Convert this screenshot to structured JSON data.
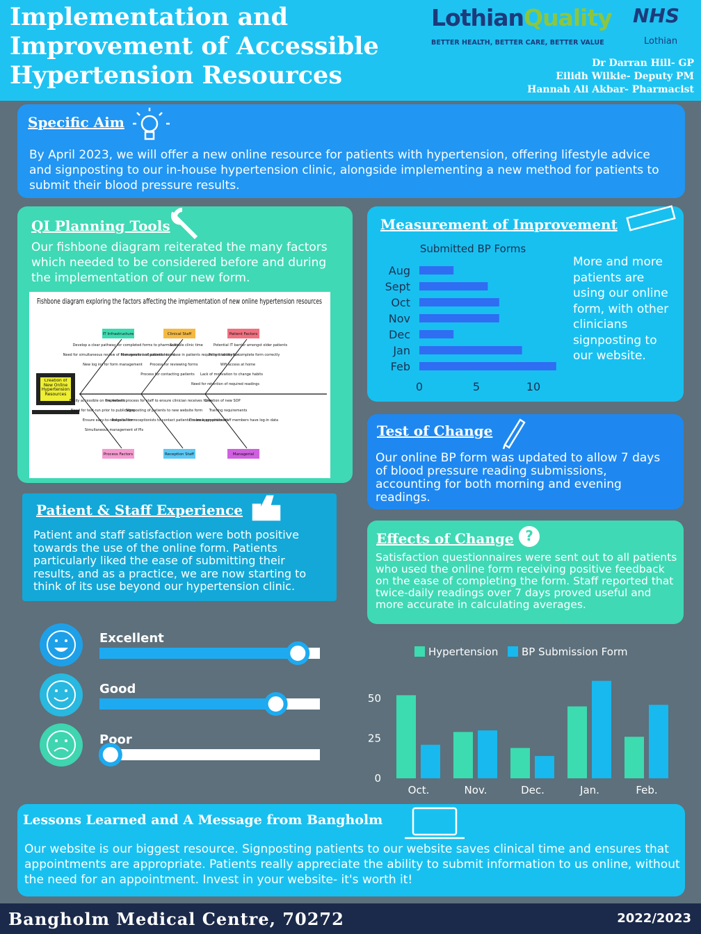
{
  "header": {
    "title_lines": [
      "Implementation and",
      "Improvement of Accessible",
      "Hypertension Resources"
    ],
    "logo_main": "Lothian",
    "logo_accent": "Quality",
    "tagline": "BETTER HEALTH, BETTER CARE, BETTER VALUE",
    "nhs": "NHS",
    "nhs_sub": "Lothian",
    "authors": [
      "Dr Darran Hill- GP",
      "Eilidh Wilkie- Deputy PM",
      "Hannah Ali Akbar- Pharmacist"
    ]
  },
  "aim": {
    "heading": "Specific Aim",
    "text": "By April 2023, we will offer a new online resource for patients with hypertension, offering lifestyle advice and signposting to our in-house hypertension clinic, alongside implementing a new method for patients to submit their blood pressure results."
  },
  "planning": {
    "heading": "QI Planning Tools",
    "text": "Our fishbone diagram reiterated the many factors which needed to be considered before and during the implementation of our new form.",
    "fishbone": {
      "title": "Fishbone diagram exploring the factors affecting the implementation of new online hypertension resources",
      "head": "Creation of New Online Hypertension Resources",
      "causes": [
        {
          "label": "IT Infrastructure",
          "items": [
            "Develop a clear pathway for completed forms to pharmacist",
            "Need for simultaneous review of form results and patient record",
            "New log ins for form management"
          ]
        },
        {
          "label": "Clinical Staff",
          "items": [
            "Suitable clinic time",
            "Management of potential increase in patients requiring intervention",
            "Process for reviewing forms",
            "Process for contacting patients"
          ]
        },
        {
          "label": "Patient Factors",
          "items": [
            "Potential IT barrier amongst older patients",
            "Patient ability to complete form correctly",
            "Wifi access at home",
            "Lack of motivation to change habits",
            "Need for retention of required readings"
          ]
        },
        {
          "label": "Process Factors",
          "items": [
            "Easily accessible on the website",
            "Need for test-run prior to publication",
            "Ensure easy-to-navigate form",
            "Simultaneous management of PIs"
          ]
        },
        {
          "label": "Reception Staff",
          "items": [
            "Implement process for staff to ensure clinician receives form",
            "Signposting of patients to new website form",
            "Potential for receptionists to contact patients to book appointment"
          ]
        },
        {
          "label": "Managerial",
          "items": [
            "Creation of new SOP",
            "Training requirements",
            "Ensure appropriate staff members have log-in data"
          ]
        }
      ]
    }
  },
  "measurement": {
    "heading": "Measurement of Improvement",
    "text": "More and more patients are using our online form, with other clinicians signposting to our website."
  },
  "test": {
    "heading": "Test of Change",
    "text": "Our online BP form was updated to allow 7 days of blood pressure reading submissions, accounting for both morning and evening readings."
  },
  "effects": {
    "heading": "Effects of Change",
    "text": "Satisfaction questionnaires were sent out to all patients who used the online form receiving positive feedback on the ease of completing the form. Staff reported that twice-daily readings over 7 days proved useful and more accurate in calculating averages."
  },
  "experience": {
    "heading": "Patient & Staff  Experience",
    "text": "Patient and staff satisfaction were both positive towards the use of the online form. Patients particularly liked the ease of submitting their results, and as a practice, we are now starting to think of its use beyond our hypertension clinic."
  },
  "lessons": {
    "heading": "Lessons Learned and A Message from Bangholm",
    "text": "Our website is our biggest resource. Signposting patients to our website saves clinical time and ensures that appointments are appropriate. Patients really appreciate the ability to submit information to us online, without the need for an appointment. Invest in your website- it's worth it!"
  },
  "footer": {
    "name": "Bangholm Medical Centre, 70272",
    "year": "2022/2023"
  },
  "chart_data": [
    {
      "type": "hbar",
      "title": "Submitted BP Forms",
      "categories": [
        "Aug",
        "Sept",
        "Oct",
        "Nov",
        "Dec",
        "Jan",
        "Feb"
      ],
      "values": [
        3,
        6,
        7,
        7,
        3,
        9,
        12
      ],
      "color": "#2f6df2",
      "xlim": [
        0,
        12.5
      ],
      "xticks": [
        0,
        5,
        10
      ]
    },
    {
      "type": "groupbar",
      "categories": [
        "Oct.",
        "Nov.",
        "Dec.",
        "Jan.",
        "Feb."
      ],
      "series": [
        {
          "name": "Hypertension",
          "color": "#3ddbb0",
          "values": [
            52,
            29,
            19,
            45,
            26
          ]
        },
        {
          "name": "BP Submission Form",
          "color": "#17b9ee",
          "values": [
            21,
            30,
            14,
            61,
            46
          ]
        }
      ],
      "ylim": [
        0,
        65
      ],
      "yticks": [
        0,
        25,
        50
      ]
    },
    {
      "type": "rating",
      "categories": [
        "Excellent",
        "Good",
        "Poor"
      ],
      "values": [
        90,
        80,
        5
      ],
      "xlim": [
        0,
        100
      ],
      "color": "#1eaaf0"
    }
  ]
}
